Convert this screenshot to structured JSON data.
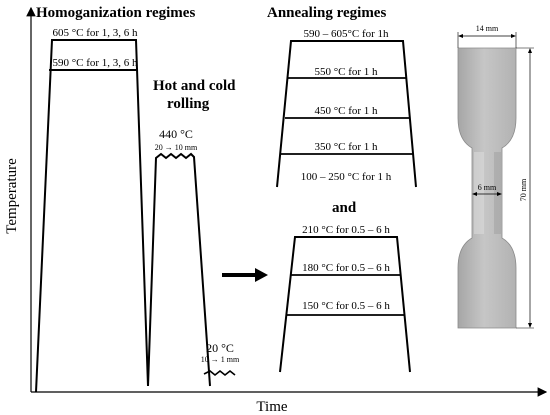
{
  "axes": {
    "x_label": "Time",
    "y_label": "Temperature"
  },
  "homogenization": {
    "title": "Homoganization regimes",
    "levels": [
      "605 °C for 1, 3, 6 h",
      "590 °C for 1, 3, 6 h"
    ]
  },
  "rolling": {
    "title_line1": "Hot and cold",
    "title_line2": "rolling",
    "hot_temp": "440 °C",
    "hot_reduction": "20 → 10 mm",
    "cold_temp": "20 °C",
    "cold_reduction": "10 → 1  mm"
  },
  "annealing": {
    "title": "Annealing regimes",
    "upper_levels": [
      "590 – 605°C for 1h",
      "550 °C for 1 h",
      "450 °C for 1 h",
      "350 °C for 1 h",
      "100 – 250 °C for 1 h"
    ],
    "connector": "and",
    "lower_levels": [
      "210 °C for 0.5 – 6 h",
      "180 °C for 0.5 – 6 h",
      "150 °C for 0.5 – 6 h"
    ]
  },
  "specimen": {
    "width_label": "14 mm",
    "gauge_label": "6 mm",
    "length_label": "70 mm",
    "colors": {
      "base": "#b9b9b9",
      "light": "#d8d8d8",
      "dark": "#8f8f8f"
    }
  }
}
